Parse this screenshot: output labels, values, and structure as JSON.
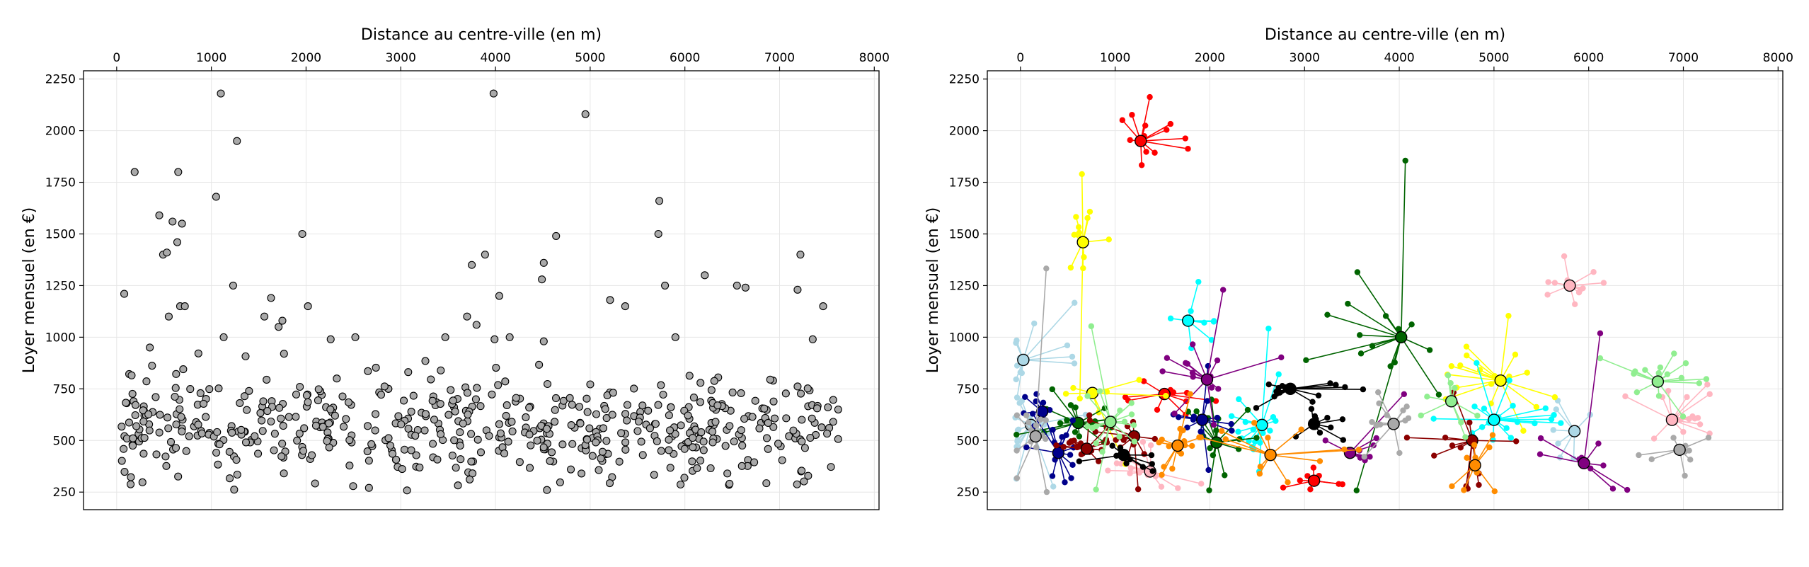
{
  "chart_data": [
    {
      "type": "scatter",
      "xlabel": "Distance au centre-ville (en m)",
      "ylabel": "Loyer mensuel (en €)",
      "xlim": [
        -350,
        8050
      ],
      "ylim": [
        165,
        2290
      ],
      "x_ticks": [
        0,
        1000,
        2000,
        3000,
        4000,
        5000,
        6000,
        7000,
        8000
      ],
      "y_ticks": [
        250,
        500,
        750,
        1000,
        1250,
        1500,
        1750,
        2000,
        2250
      ],
      "x_axis_position": "top",
      "grid": true,
      "marker_color": "#a9a9a9",
      "outlier_points": [
        [
          1100,
          2180
        ],
        [
          3980,
          2180
        ],
        [
          4950,
          2080
        ],
        [
          1270,
          1950
        ],
        [
          190,
          1800
        ],
        [
          650,
          1800
        ],
        [
          1050,
          1680
        ],
        [
          5730,
          1660
        ],
        [
          450,
          1590
        ],
        [
          590,
          1560
        ],
        [
          690,
          1550
        ],
        [
          1960,
          1500
        ],
        [
          5720,
          1500
        ],
        [
          4640,
          1490
        ],
        [
          490,
          1400
        ],
        [
          530,
          1410
        ],
        [
          3890,
          1400
        ],
        [
          7220,
          1400
        ],
        [
          640,
          1460
        ],
        [
          4510,
          1360
        ],
        [
          3750,
          1350
        ],
        [
          6210,
          1300
        ],
        [
          4490,
          1280
        ],
        [
          1230,
          1250
        ],
        [
          5790,
          1250
        ],
        [
          6550,
          1250
        ],
        [
          6640,
          1240
        ],
        [
          7190,
          1230
        ],
        [
          80,
          1210
        ],
        [
          4040,
          1200
        ],
        [
          1630,
          1190
        ],
        [
          5210,
          1180
        ],
        [
          670,
          1150
        ],
        [
          720,
          1150
        ],
        [
          2020,
          1150
        ],
        [
          5370,
          1150
        ],
        [
          7460,
          1150
        ],
        [
          550,
          1100
        ],
        [
          1560,
          1100
        ],
        [
          3700,
          1100
        ],
        [
          1750,
          1080
        ],
        [
          3800,
          1060
        ],
        [
          1710,
          1050
        ],
        [
          4150,
          1000
        ],
        [
          2260,
          990
        ],
        [
          5900,
          1000
        ],
        [
          3990,
          990
        ],
        [
          7350,
          990
        ],
        [
          350,
          950
        ],
        [
          1130,
          1000
        ],
        [
          3470,
          1000
        ],
        [
          2520,
          1000
        ],
        [
          4510,
          980
        ]
      ]
    },
    {
      "type": "scatter",
      "xlabel": "Distance au centre-ville (en m)",
      "ylabel": "Loyer mensuel (en €)",
      "xlim": [
        -350,
        8050
      ],
      "ylim": [
        165,
        2290
      ],
      "x_ticks": [
        0,
        1000,
        2000,
        3000,
        4000,
        5000,
        6000,
        7000,
        8000
      ],
      "y_ticks": [
        250,
        500,
        750,
        1000,
        1250,
        1500,
        1750,
        2000,
        2250
      ],
      "x_axis_position": "top",
      "grid": true,
      "clusters": [
        {
          "color": "#add8e6",
          "center": [
            30,
            890
          ]
        },
        {
          "color": "#add8e6",
          "center": [
            110,
            575
          ]
        },
        {
          "color": "#add8e6",
          "center": [
            5850,
            545
          ]
        },
        {
          "color": "#ffb6c1",
          "center": [
            5800,
            1250
          ]
        },
        {
          "color": "#ffb6c1",
          "center": [
            6880,
            600
          ]
        },
        {
          "color": "#ffb6c1",
          "center": [
            1370,
            350
          ]
        },
        {
          "color": "#ff0000",
          "center": [
            1270,
            1950
          ]
        },
        {
          "color": "#ff0000",
          "center": [
            1520,
            725
          ]
        },
        {
          "color": "#ff0000",
          "center": [
            3100,
            305
          ]
        },
        {
          "color": "#ffff00",
          "center": [
            660,
            1460
          ]
        },
        {
          "color": "#ffff00",
          "center": [
            760,
            730
          ]
        },
        {
          "color": "#ffff00",
          "center": [
            5070,
            790
          ]
        },
        {
          "color": "#00ffff",
          "center": [
            1770,
            1080
          ]
        },
        {
          "color": "#00ffff",
          "center": [
            2550,
            575
          ]
        },
        {
          "color": "#00ffff",
          "center": [
            5000,
            600
          ]
        },
        {
          "color": "#006400",
          "center": [
            4020,
            1000
          ]
        },
        {
          "color": "#006400",
          "center": [
            610,
            585
          ]
        },
        {
          "color": "#006400",
          "center": [
            2070,
            490
          ]
        },
        {
          "color": "#00008b",
          "center": [
            230,
            640
          ]
        },
        {
          "color": "#00008b",
          "center": [
            400,
            440
          ]
        },
        {
          "color": "#00008b",
          "center": [
            1920,
            600
          ]
        },
        {
          "color": "#8b0000",
          "center": [
            1200,
            520
          ]
        },
        {
          "color": "#8b0000",
          "center": [
            700,
            460
          ]
        },
        {
          "color": "#8b0000",
          "center": [
            4770,
            500
          ]
        },
        {
          "color": "#90ee90",
          "center": [
            950,
            590
          ]
        },
        {
          "color": "#90ee90",
          "center": [
            4550,
            690
          ]
        },
        {
          "color": "#90ee90",
          "center": [
            6730,
            785
          ]
        },
        {
          "color": "#800080",
          "center": [
            1970,
            795
          ]
        },
        {
          "color": "#800080",
          "center": [
            3480,
            440
          ]
        },
        {
          "color": "#800080",
          "center": [
            5950,
            390
          ]
        },
        {
          "color": "#000000",
          "center": [
            2850,
            750
          ]
        },
        {
          "color": "#000000",
          "center": [
            3100,
            580
          ]
        },
        {
          "color": "#000000",
          "center": [
            1090,
            430
          ]
        },
        {
          "color": "#ff8c00",
          "center": [
            1660,
            475
          ]
        },
        {
          "color": "#ff8c00",
          "center": [
            2640,
            430
          ]
        },
        {
          "color": "#ff8c00",
          "center": [
            4800,
            380
          ]
        },
        {
          "color": "#a9a9a9",
          "center": [
            3940,
            580
          ]
        },
        {
          "color": "#a9a9a9",
          "center": [
            6960,
            455
          ]
        },
        {
          "color": "#a9a9a9",
          "center": [
            160,
            520
          ]
        }
      ]
    }
  ]
}
